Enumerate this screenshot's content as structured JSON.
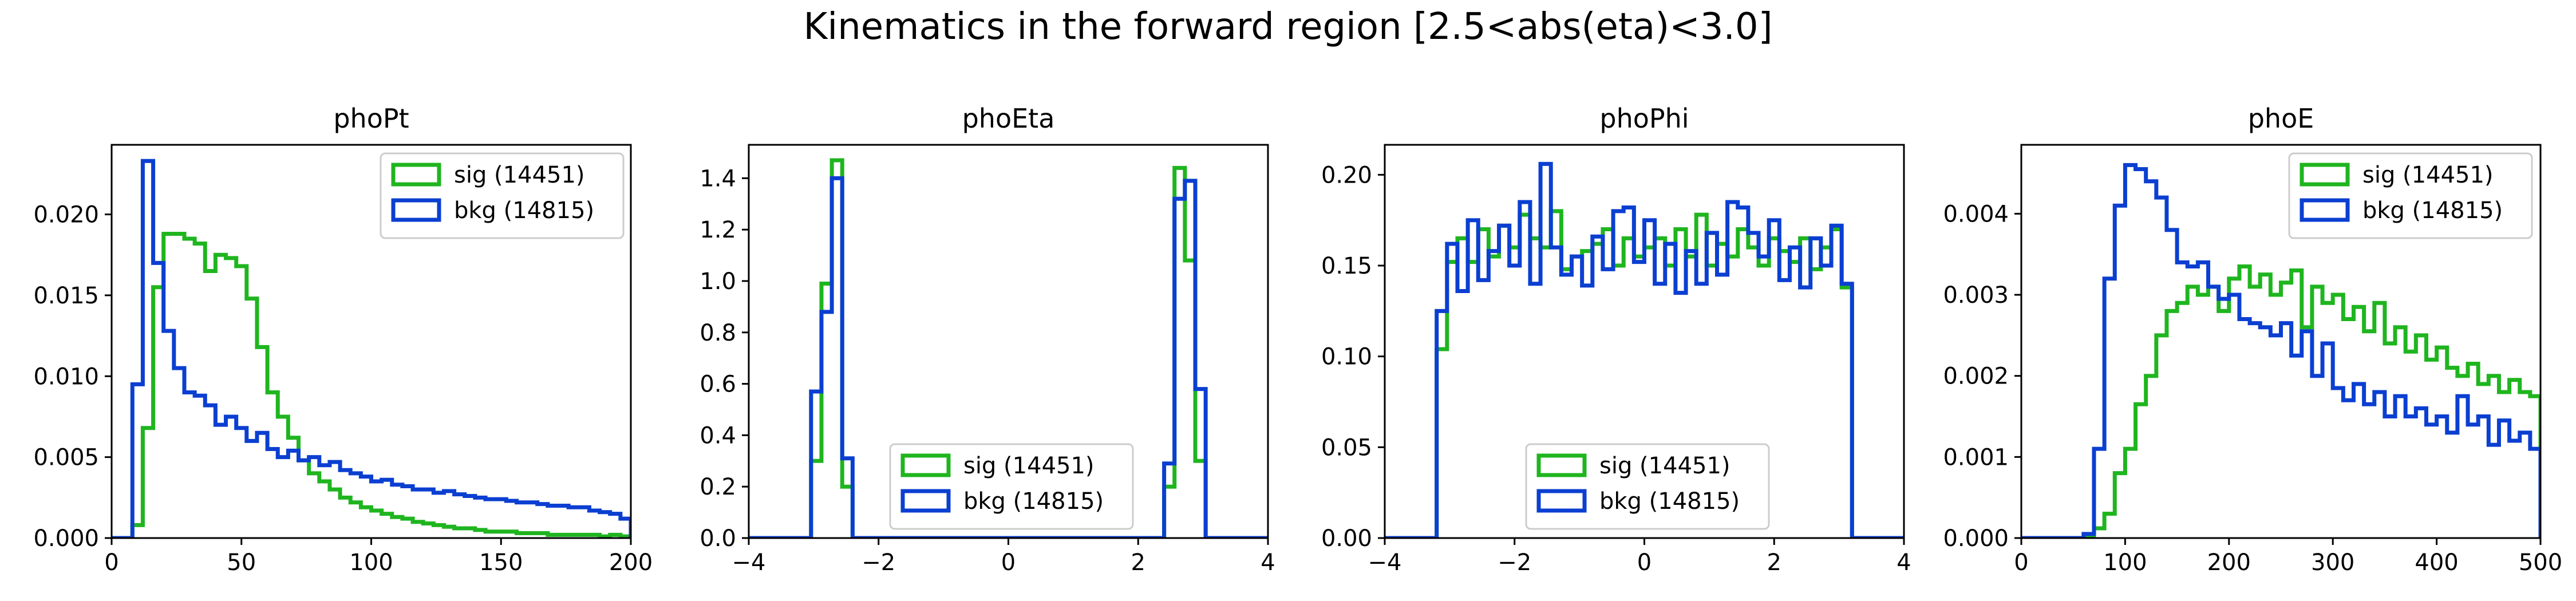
{
  "figure_title": "Kinematics in the forward region [2.5<abs(eta)<3.0]",
  "colors": {
    "sig": "#1fb51f",
    "bkg": "#0b3fd1"
  },
  "chart_data": [
    {
      "type": "histogram",
      "title": "phoPt",
      "xlim": [
        0,
        200
      ],
      "ylim": [
        0,
        0.0243
      ],
      "xticks": [
        0,
        50,
        100,
        150,
        200
      ],
      "xtick_labels": [
        "0",
        "50",
        "100",
        "150",
        "200"
      ],
      "yticks": [
        0,
        0.005,
        0.01,
        0.015,
        0.02
      ],
      "ytick_labels": [
        "0.000",
        "0.005",
        "0.010",
        "0.015",
        "0.020"
      ],
      "legend": "upper right",
      "bin_edges": [
        0,
        4,
        8,
        12,
        16,
        20,
        24,
        28,
        32,
        36,
        40,
        44,
        48,
        52,
        56,
        60,
        64,
        68,
        72,
        76,
        80,
        84,
        88,
        92,
        96,
        100,
        104,
        108,
        112,
        116,
        120,
        124,
        128,
        132,
        136,
        140,
        144,
        148,
        152,
        156,
        160,
        164,
        168,
        172,
        176,
        180,
        184,
        188,
        192,
        196,
        200
      ],
      "series": [
        {
          "name": "sig (14451)",
          "values": [
            0,
            0,
            0.0008,
            0.0068,
            0.0155,
            0.0188,
            0.0188,
            0.0185,
            0.0182,
            0.0165,
            0.0175,
            0.0173,
            0.0168,
            0.0148,
            0.0118,
            0.009,
            0.0075,
            0.0062,
            0.0048,
            0.004,
            0.0035,
            0.003,
            0.0025,
            0.0022,
            0.0019,
            0.0017,
            0.0015,
            0.0013,
            0.0012,
            0.001,
            0.0009,
            0.0008,
            0.0007,
            0.0006,
            0.0006,
            0.0005,
            0.0004,
            0.0004,
            0.0004,
            0.0003,
            0.0003,
            0.0003,
            0.0002,
            0.0002,
            0.0002,
            0.0002,
            0.0002,
            0.0001,
            0.0002,
            0.0001
          ]
        },
        {
          "name": "bkg (14815)",
          "values": [
            0,
            0,
            0.0095,
            0.0233,
            0.017,
            0.0128,
            0.0105,
            0.009,
            0.0088,
            0.0082,
            0.007,
            0.0075,
            0.0068,
            0.006,
            0.0065,
            0.0055,
            0.005,
            0.0054,
            0.0048,
            0.005,
            0.0045,
            0.0047,
            0.0042,
            0.004,
            0.0038,
            0.0035,
            0.0036,
            0.0033,
            0.0032,
            0.003,
            0.003,
            0.0028,
            0.0029,
            0.0027,
            0.0026,
            0.0025,
            0.0024,
            0.0024,
            0.0023,
            0.0022,
            0.0022,
            0.0021,
            0.002,
            0.002,
            0.0019,
            0.0019,
            0.0017,
            0.0016,
            0.0015,
            0.0012
          ]
        }
      ]
    },
    {
      "type": "histogram",
      "title": "phoEta",
      "xlim": [
        -4,
        4
      ],
      "ylim": [
        0,
        1.53
      ],
      "xticks": [
        -4,
        -2,
        0,
        2,
        4
      ],
      "xtick_labels": [
        "−4",
        "−2",
        "0",
        "2",
        "4"
      ],
      "yticks": [
        0,
        0.2,
        0.4,
        0.6,
        0.8,
        1.0,
        1.2,
        1.4
      ],
      "ytick_labels": [
        "0.0",
        "0.2",
        "0.4",
        "0.6",
        "0.8",
        "1.0",
        "1.2",
        "1.4"
      ],
      "legend": "lower center",
      "bin_edges": [
        -4,
        -3.84,
        -3.68,
        -3.52,
        -3.36,
        -3.2,
        -3.04,
        -2.88,
        -2.72,
        -2.56,
        -2.4,
        -2.24,
        -2.08,
        -1.92,
        -1.76,
        -1.6,
        -1.44,
        -1.28,
        -1.12,
        -0.96,
        -0.8,
        -0.64,
        -0.48,
        -0.32,
        -0.16,
        0,
        0.16,
        0.32,
        0.48,
        0.64,
        0.8,
        0.96,
        1.12,
        1.28,
        1.44,
        1.6,
        1.76,
        1.92,
        2.08,
        2.24,
        2.4,
        2.56,
        2.72,
        2.88,
        3.04,
        3.2,
        3.36,
        3.52,
        3.68,
        3.84,
        4
      ],
      "series": [
        {
          "name": "sig (14451)",
          "values": [
            0,
            0,
            0,
            0,
            0,
            0,
            0.3,
            0.99,
            1.47,
            0.2,
            0,
            0,
            0,
            0,
            0,
            0,
            0,
            0,
            0,
            0,
            0,
            0,
            0,
            0,
            0,
            0,
            0,
            0,
            0,
            0,
            0,
            0,
            0,
            0,
            0,
            0,
            0,
            0,
            0,
            0,
            0.2,
            1.44,
            1.08,
            0.3,
            0,
            0,
            0,
            0,
            0,
            0
          ]
        },
        {
          "name": "bkg (14815)",
          "values": [
            0,
            0,
            0,
            0,
            0,
            0,
            0.57,
            0.88,
            1.4,
            0.31,
            0,
            0,
            0,
            0,
            0,
            0,
            0,
            0,
            0,
            0,
            0,
            0,
            0,
            0,
            0,
            0,
            0,
            0,
            0,
            0,
            0,
            0,
            0,
            0,
            0,
            0,
            0,
            0,
            0,
            0,
            0.29,
            1.32,
            1.39,
            0.58,
            0,
            0,
            0,
            0,
            0,
            0
          ]
        }
      ]
    },
    {
      "type": "histogram",
      "title": "phoPhi",
      "xlim": [
        -4,
        4
      ],
      "ylim": [
        0,
        0.2165
      ],
      "xticks": [
        -4,
        -2,
        0,
        2,
        4
      ],
      "xtick_labels": [
        "−4",
        "−2",
        "0",
        "2",
        "4"
      ],
      "yticks": [
        0,
        0.05,
        0.1,
        0.15,
        0.2
      ],
      "ytick_labels": [
        "0.00",
        "0.05",
        "0.10",
        "0.15",
        "0.20"
      ],
      "legend": "lower center",
      "bin_edges": [
        -4,
        -3.84,
        -3.68,
        -3.52,
        -3.36,
        -3.2,
        -3.04,
        -2.88,
        -2.72,
        -2.56,
        -2.4,
        -2.24,
        -2.08,
        -1.92,
        -1.76,
        -1.6,
        -1.44,
        -1.28,
        -1.12,
        -0.96,
        -0.8,
        -0.64,
        -0.48,
        -0.32,
        -0.16,
        0,
        0.16,
        0.32,
        0.48,
        0.64,
        0.8,
        0.96,
        1.12,
        1.28,
        1.44,
        1.6,
        1.76,
        1.92,
        2.08,
        2.24,
        2.4,
        2.56,
        2.72,
        2.88,
        3.04,
        3.2,
        3.36,
        3.52,
        3.68,
        3.84,
        4
      ],
      "series": [
        {
          "name": "sig (14451)",
          "values": [
            0,
            0,
            0,
            0,
            0,
            0.104,
            0.152,
            0.165,
            0.152,
            0.17,
            0.155,
            0.172,
            0.16,
            0.178,
            0.165,
            0.16,
            0.18,
            0.148,
            0.155,
            0.158,
            0.162,
            0.17,
            0.15,
            0.165,
            0.155,
            0.16,
            0.165,
            0.15,
            0.17,
            0.155,
            0.178,
            0.15,
            0.162,
            0.155,
            0.17,
            0.16,
            0.15,
            0.165,
            0.158,
            0.152,
            0.165,
            0.148,
            0.16,
            0.17,
            0.138,
            0,
            0,
            0,
            0,
            0
          ]
        },
        {
          "name": "bkg (14815)",
          "values": [
            0,
            0,
            0,
            0,
            0,
            0.125,
            0.162,
            0.136,
            0.175,
            0.142,
            0.158,
            0.172,
            0.15,
            0.185,
            0.14,
            0.206,
            0.16,
            0.145,
            0.155,
            0.139,
            0.166,
            0.148,
            0.18,
            0.182,
            0.152,
            0.175,
            0.14,
            0.162,
            0.135,
            0.158,
            0.14,
            0.168,
            0.145,
            0.185,
            0.182,
            0.168,
            0.155,
            0.175,
            0.142,
            0.16,
            0.138,
            0.165,
            0.15,
            0.172,
            0.14,
            0,
            0,
            0,
            0,
            0
          ]
        }
      ]
    },
    {
      "type": "histogram",
      "title": "phoE",
      "xlim": [
        0,
        500
      ],
      "ylim": [
        0,
        0.00485
      ],
      "xticks": [
        0,
        100,
        200,
        300,
        400,
        500
      ],
      "xtick_labels": [
        "0",
        "100",
        "200",
        "300",
        "400",
        "500"
      ],
      "yticks": [
        0,
        0.001,
        0.002,
        0.003,
        0.004
      ],
      "ytick_labels": [
        "0.000",
        "0.001",
        "0.002",
        "0.003",
        "0.004"
      ],
      "legend": "upper right",
      "bin_edges": [
        0,
        10,
        20,
        30,
        40,
        50,
        60,
        70,
        80,
        90,
        100,
        110,
        120,
        130,
        140,
        150,
        160,
        170,
        180,
        190,
        200,
        210,
        220,
        230,
        240,
        250,
        260,
        270,
        280,
        290,
        300,
        310,
        320,
        330,
        340,
        350,
        360,
        370,
        380,
        390,
        400,
        410,
        420,
        430,
        440,
        450,
        460,
        470,
        480,
        490,
        500
      ],
      "series": [
        {
          "name": "sig (14451)",
          "values": [
            0,
            0,
            0,
            0,
            0,
            0,
            2e-05,
            0.00012,
            0.0003,
            0.0008,
            0.0011,
            0.00165,
            0.002,
            0.0025,
            0.0028,
            0.0029,
            0.0031,
            0.003,
            0.0031,
            0.0028,
            0.0032,
            0.00335,
            0.0031,
            0.00325,
            0.003,
            0.00315,
            0.0033,
            0.0026,
            0.0031,
            0.0029,
            0.003,
            0.0027,
            0.00285,
            0.00255,
            0.0029,
            0.0024,
            0.0026,
            0.0023,
            0.0025,
            0.0022,
            0.00235,
            0.0021,
            0.002,
            0.00215,
            0.0019,
            0.002,
            0.0018,
            0.00195,
            0.0018,
            0.00175
          ]
        },
        {
          "name": "bkg (14815)",
          "values": [
            0,
            0,
            0,
            0,
            0,
            0,
            5e-05,
            0.0011,
            0.0032,
            0.0041,
            0.0046,
            0.00455,
            0.0044,
            0.0042,
            0.0038,
            0.0034,
            0.00335,
            0.0034,
            0.0031,
            0.00295,
            0.003,
            0.0027,
            0.00265,
            0.0026,
            0.0025,
            0.00265,
            0.00225,
            0.00255,
            0.002,
            0.0024,
            0.00185,
            0.0017,
            0.0019,
            0.00165,
            0.0018,
            0.0015,
            0.00175,
            0.0015,
            0.0016,
            0.0014,
            0.0015,
            0.0013,
            0.00175,
            0.0014,
            0.0015,
            0.00115,
            0.00145,
            0.0012,
            0.0013,
            0.0011
          ]
        }
      ]
    }
  ]
}
